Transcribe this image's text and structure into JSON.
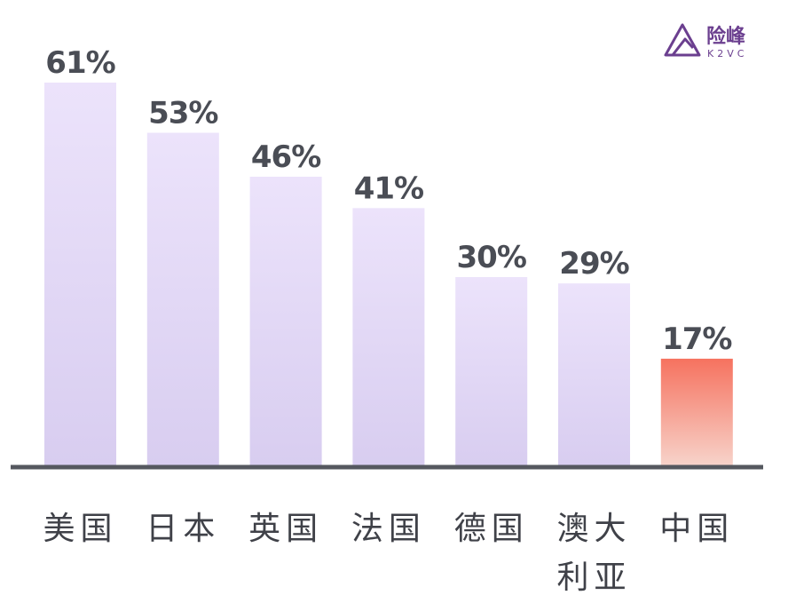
{
  "logo": {
    "name_cn": "险峰",
    "name_en": "K2VC",
    "icon": "mountain-triangle-icon",
    "color": "#6b3f8f"
  },
  "chart_data": {
    "type": "bar",
    "categories": [
      "美国",
      "日本",
      "英国",
      "法国",
      "德国",
      "澳大利亚",
      "中国"
    ],
    "category_lines": [
      [
        "美国"
      ],
      [
        "日本"
      ],
      [
        "英国"
      ],
      [
        "法国"
      ],
      [
        "德国"
      ],
      [
        "澳大",
        "利亚"
      ],
      [
        "中国"
      ]
    ],
    "values": [
      61,
      53,
      46,
      41,
      30,
      29,
      17
    ],
    "value_labels": [
      "61%",
      "53%",
      "46%",
      "41%",
      "30%",
      "29%",
      "17%"
    ],
    "highlight_index": 6,
    "ylim": [
      0,
      61
    ],
    "grid": false,
    "legend": "none",
    "colors": {
      "bar_top": "#ece3fb",
      "bar_bottom": "#d8cdf0",
      "highlight_top": "#f6725f",
      "highlight_bottom": "#f7d3ca",
      "axis": "#55585f",
      "value_text": "#4a4d55",
      "category_text": "#3f4148"
    }
  }
}
